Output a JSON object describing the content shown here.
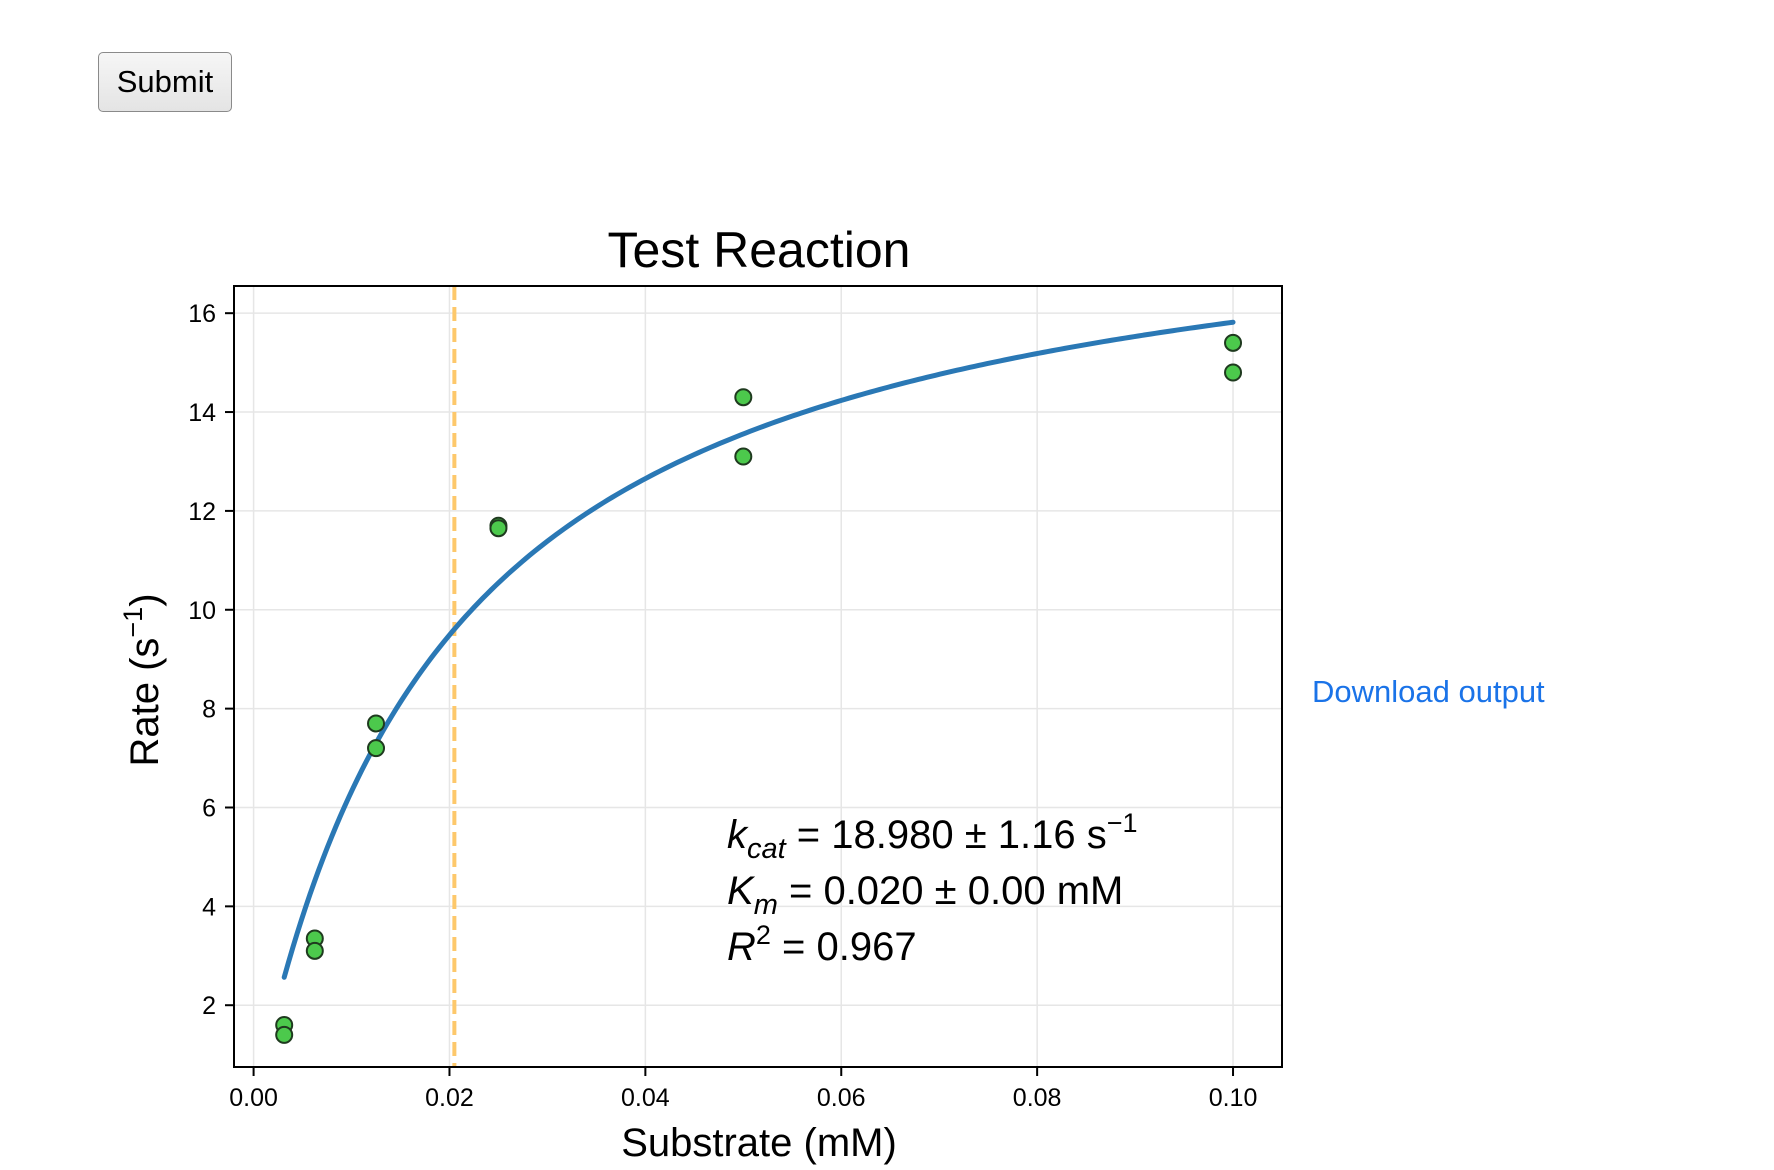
{
  "form": {
    "submit_label": "Submit",
    "download_label": "Download output"
  },
  "chart_data": {
    "type": "scatter",
    "title": "Test Reaction",
    "xlabel": "Substrate (mM)",
    "ylabel": "Rate (s",
    "ylabel_sup": "−1",
    "ylabel_end": ")",
    "xlim": [
      -0.002,
      0.105
    ],
    "ylim": [
      0.75,
      16.55
    ],
    "xticks": [
      0.0,
      0.02,
      0.04,
      0.06,
      0.08,
      0.1
    ],
    "xtick_labels": [
      "0.00",
      "0.02",
      "0.04",
      "0.06",
      "0.08",
      "0.10"
    ],
    "yticks": [
      2,
      4,
      6,
      8,
      10,
      12,
      14,
      16
    ],
    "ytick_labels": [
      "2",
      "4",
      "6",
      "8",
      "10",
      "12",
      "14",
      "16"
    ],
    "grid": true,
    "points": {
      "color": "#4cc94c",
      "x": [
        0.003125,
        0.003125,
        0.00625,
        0.00625,
        0.0125,
        0.0125,
        0.025,
        0.025,
        0.05,
        0.05,
        0.1,
        0.1
      ],
      "y": [
        1.6,
        1.4,
        3.35,
        3.1,
        7.7,
        7.2,
        11.7,
        11.65,
        14.3,
        13.1,
        15.4,
        14.8
      ]
    },
    "fit": {
      "model": "michaelis-menten",
      "color": "#2a78b5",
      "kcat": 18.98,
      "km": 0.02,
      "x_start": 0.003125,
      "x_end": 0.1
    },
    "km_line": {
      "x": 0.0205,
      "color": "#fdc86b",
      "style": "dashed"
    },
    "annotations": {
      "kcat_sym": "k",
      "kcat_sub": "cat",
      "kcat_text": " = 18.980 ± 1.16 s",
      "kcat_sup": "−1",
      "km_sym": "K",
      "km_sub": "m",
      "km_text": " = 0.020 ± 0.00 mM",
      "r2_sym": "R",
      "r2_sup": "2",
      "r2_text": " = 0.967"
    }
  }
}
